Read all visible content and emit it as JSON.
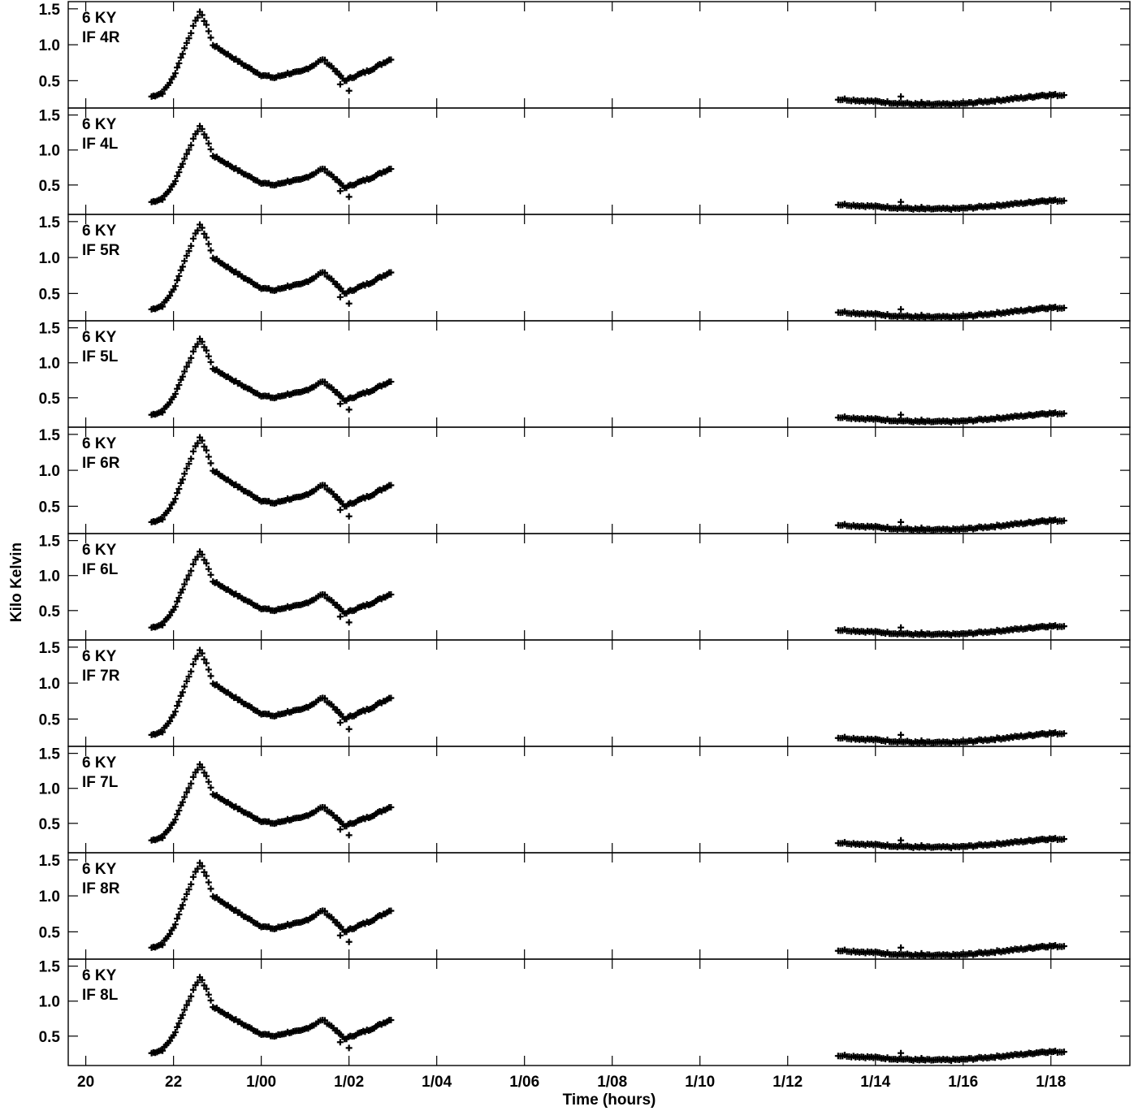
{
  "chart_data": {
    "type": "scatter",
    "xlabel": "Time (hours)",
    "ylabel": "Kilo Kelvin",
    "x_tick_labels": [
      "20",
      "22",
      "1/00",
      "1/02",
      "1/04",
      "1/06",
      "1/08",
      "1/10",
      "1/12",
      "1/14",
      "1/16",
      "1/18"
    ],
    "x_tick_hours": [
      20,
      22,
      24,
      26,
      28,
      30,
      32,
      34,
      36,
      38,
      40,
      42
    ],
    "xlim_hours": [
      19.6,
      43.8
    ],
    "grid": false,
    "marker": "plus",
    "panels": [
      {
        "source": "6 KY",
        "if": "IF 4R",
        "ylim": [
          0.12,
          1.6
        ],
        "y_ticks": [
          "0.5",
          "1.0",
          "1.5"
        ],
        "scale": 1.0
      },
      {
        "source": "6 KY",
        "if": "IF 4L",
        "ylim": [
          0.08,
          1.6
        ],
        "y_ticks": [
          "0.5",
          "1.0",
          "1.5"
        ],
        "scale": 0.92
      },
      {
        "source": "6 KY",
        "if": "IF 5R",
        "ylim": [
          0.12,
          1.6
        ],
        "y_ticks": [
          "0.5",
          "1.0",
          "1.5"
        ],
        "scale": 1.0
      },
      {
        "source": "6 KY",
        "if": "IF 5L",
        "ylim": [
          0.08,
          1.6
        ],
        "y_ticks": [
          "0.5",
          "1.0",
          "1.5"
        ],
        "scale": 0.92
      },
      {
        "source": "6 KY",
        "if": "IF 6R",
        "ylim": [
          0.12,
          1.6
        ],
        "y_ticks": [
          "0.5",
          "1.0",
          "1.5"
        ],
        "scale": 1.0
      },
      {
        "source": "6 KY",
        "if": "IF 6L",
        "ylim": [
          0.08,
          1.6
        ],
        "y_ticks": [
          "0.5",
          "1.0",
          "1.5"
        ],
        "scale": 0.92
      },
      {
        "source": "6 KY",
        "if": "IF 7R",
        "ylim": [
          0.12,
          1.6
        ],
        "y_ticks": [
          "0.5",
          "1.0",
          "1.5"
        ],
        "scale": 1.0
      },
      {
        "source": "6 KY",
        "if": "IF 7L",
        "ylim": [
          0.08,
          1.6
        ],
        "y_ticks": [
          "0.5",
          "1.0",
          "1.5"
        ],
        "scale": 0.92
      },
      {
        "source": "6 KY",
        "if": "IF 8R",
        "ylim": [
          0.12,
          1.6
        ],
        "y_ticks": [
          "0.5",
          "1.0",
          "1.5"
        ],
        "scale": 1.0
      },
      {
        "source": "6 KY",
        "if": "IF 8L",
        "ylim": [
          0.08,
          1.6
        ],
        "y_ticks": [
          "0.5",
          "1.0",
          "1.5"
        ],
        "scale": 0.92
      }
    ],
    "curve_keypoints": [
      [
        21.5,
        0.28
      ],
      [
        21.75,
        0.33
      ],
      [
        22.0,
        0.55
      ],
      [
        22.25,
        0.95
      ],
      [
        22.45,
        1.25
      ],
      [
        22.6,
        1.46
      ],
      [
        22.75,
        1.28
      ],
      [
        22.9,
        1.0
      ],
      [
        23.2,
        0.88
      ],
      [
        23.6,
        0.72
      ],
      [
        24.0,
        0.58
      ],
      [
        24.3,
        0.54
      ],
      [
        24.6,
        0.6
      ],
      [
        24.9,
        0.62
      ],
      [
        25.2,
        0.72
      ],
      [
        25.4,
        0.8
      ],
      [
        25.6,
        0.7
      ],
      [
        25.9,
        0.5
      ],
      [
        26.2,
        0.58
      ],
      [
        26.45,
        0.64
      ],
      [
        26.7,
        0.72
      ],
      [
        27.0,
        0.82
      ],
      [
        37.15,
        0.24
      ],
      [
        37.3,
        0.24
      ],
      [
        37.5,
        0.23
      ],
      [
        38.0,
        0.21
      ],
      [
        38.5,
        0.19
      ],
      [
        39.0,
        0.17
      ],
      [
        39.5,
        0.17
      ],
      [
        40.0,
        0.18
      ],
      [
        40.5,
        0.21
      ],
      [
        41.0,
        0.24
      ],
      [
        41.5,
        0.27
      ],
      [
        41.8,
        0.3
      ],
      [
        42.1,
        0.3
      ],
      [
        42.3,
        0.3
      ]
    ],
    "outliers": [
      [
        26.0,
        0.36
      ],
      [
        25.8,
        0.45
      ],
      [
        38.58,
        0.28
      ],
      [
        39.05,
        0.2
      ]
    ]
  }
}
